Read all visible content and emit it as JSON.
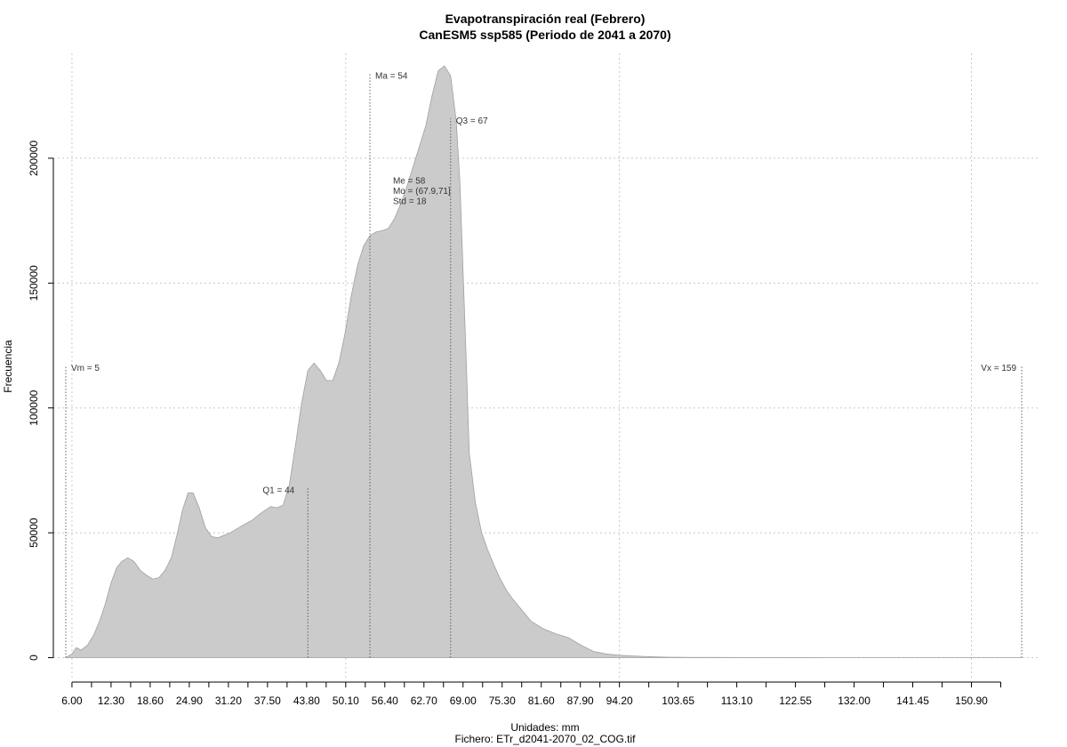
{
  "chart_data": {
    "type": "area",
    "title": "Evapotranspiración real (Febrero)",
    "subtitle": "CanESM5 ssp585 (Periodo de 2041 a 2070)",
    "xlabel": "Unidades: mm",
    "caption": "Fichero: ETr_d2041-2070_02_COG.tif",
    "ylabel": "Frecuencia",
    "xlim": [
      3,
      162
    ],
    "ylim": [
      -8000,
      242000
    ],
    "grid": true,
    "fill_color": "#cbcbcb",
    "edge_color": "#a0a0a0",
    "x_ticks": [
      6,
      9.15,
      12.3,
      15.45,
      18.6,
      21.75,
      24.9,
      28.05,
      31.2,
      34.35,
      37.5,
      40.65,
      43.8,
      46.95,
      50.1,
      53.25,
      56.4,
      59.55,
      62.7,
      65.85,
      69,
      72.15,
      75.3,
      78.45,
      81.6,
      84.75,
      87.9,
      91.05,
      94.2,
      98.925,
      103.65,
      108.375,
      113.1,
      117.825,
      122.55,
      127.275,
      132,
      136.725,
      141.45,
      146.175,
      150.9,
      155.625
    ],
    "x_tick_labels": [
      "6.00",
      "",
      "12.30",
      "",
      "18.60",
      "",
      "24.90",
      "",
      "31.20",
      "",
      "37.50",
      "",
      "43.80",
      "",
      "50.10",
      "",
      "56.40",
      "",
      "62.70",
      "",
      "69.00",
      "",
      "75.30",
      "",
      "81.60",
      "",
      "87.90",
      "",
      "94.20",
      "",
      "103.65",
      "",
      "113.10",
      "",
      "122.55",
      "",
      "132.00",
      "",
      "141.45",
      "",
      "150.90",
      ""
    ],
    "y_ticks": [
      0,
      50000,
      100000,
      150000,
      200000
    ],
    "y_tick_labels": [
      "0",
      "50000",
      "100000",
      "150000",
      "200000"
    ],
    "x_grid": [
      6,
      50.1,
      94.2,
      150.9
    ],
    "x": [
      5,
      6,
      6.7,
      7.5,
      8.5,
      9.5,
      10.5,
      11.3,
      12.3,
      13.2,
      14,
      15,
      16,
      17,
      18,
      19,
      20,
      21,
      22,
      23,
      23.8,
      24.7,
      25.5,
      26.5,
      27.5,
      28.5,
      29.5,
      30.5,
      31.5,
      32.5,
      33.5,
      35,
      36.5,
      38,
      39,
      40,
      41,
      42,
      43,
      44,
      45,
      46,
      47,
      48,
      49,
      50,
      51,
      52,
      53,
      54,
      55,
      56,
      57,
      58,
      59,
      60,
      61,
      62,
      63,
      64,
      65,
      66,
      67,
      67.9,
      68.5,
      69,
      69.5,
      70,
      71,
      72,
      73,
      74,
      75,
      76,
      77,
      78,
      79,
      80,
      82,
      84,
      86,
      88,
      90,
      92,
      94,
      96,
      98,
      100,
      102,
      104,
      106,
      110,
      115,
      120,
      130,
      140,
      150,
      159
    ],
    "y": [
      0,
      1500,
      4000,
      3000,
      5000,
      9000,
      15000,
      21000,
      30000,
      36000,
      38500,
      40000,
      38500,
      35000,
      33000,
      31500,
      32000,
      35000,
      40000,
      50000,
      59000,
      66000,
      66000,
      60000,
      52000,
      48500,
      48000,
      49000,
      50000,
      51500,
      53000,
      55000,
      58000,
      60500,
      60000,
      61000,
      69000,
      85000,
      102000,
      115000,
      118000,
      115000,
      111000,
      111000,
      118000,
      130000,
      145000,
      157000,
      165000,
      169000,
      170500,
      171000,
      172000,
      176000,
      182000,
      189000,
      197000,
      205000,
      213000,
      225000,
      235000,
      237000,
      233000,
      215000,
      190000,
      155000,
      120000,
      82000,
      62000,
      50000,
      43000,
      37000,
      31500,
      27000,
      23500,
      20500,
      17500,
      14500,
      11500,
      9500,
      8000,
      5000,
      2500,
      1500,
      1000,
      700,
      500,
      300,
      200,
      150,
      100,
      80,
      50,
      30,
      20,
      10,
      5,
      0
    ],
    "vlines": [
      {
        "x": 5,
        "label": "Vm = 5",
        "y_top": 117000
      },
      {
        "x": 44,
        "label": "Q1 = 44",
        "y_top": 68000
      },
      {
        "x": 54,
        "label": "Ma = 54",
        "y_top": 234000
      },
      {
        "x": 67,
        "label": "Q3 = 67",
        "y_top": 216000
      },
      {
        "x": 159,
        "label": "Vx = 159",
        "y_top": 117000
      }
    ],
    "stats_annotation": [
      "Me = 58",
      "Mo = (67.9,71]",
      "Std = 18"
    ],
    "stats_anchor": {
      "x": 58,
      "y": 192000
    }
  }
}
